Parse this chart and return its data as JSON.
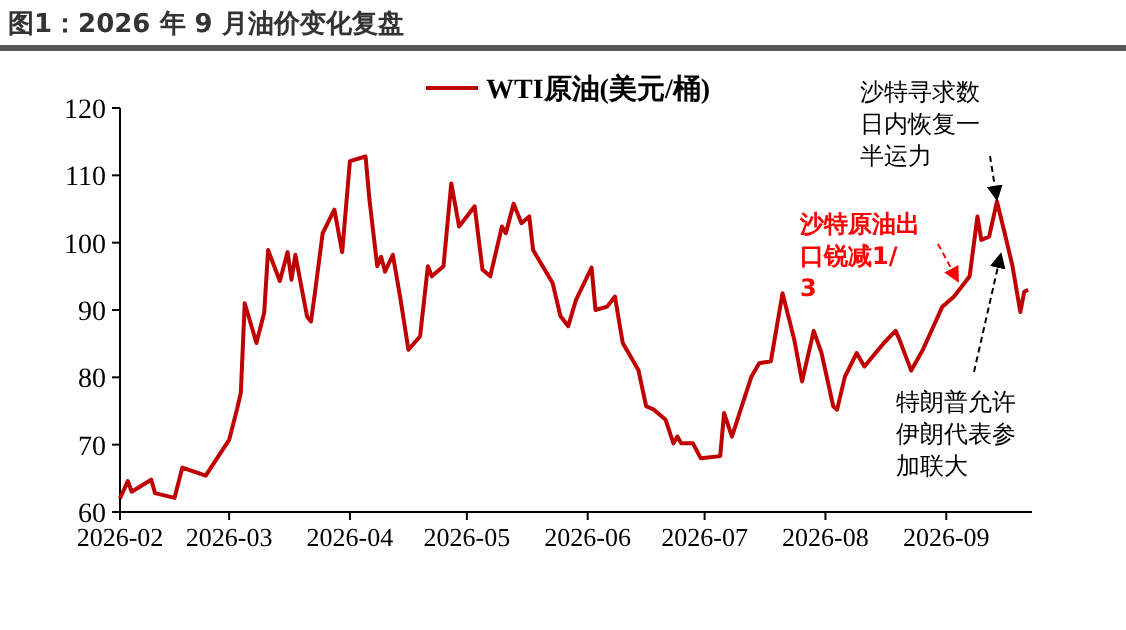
{
  "chart_data": {
    "type": "line",
    "title": "图1：2026 年 9 月油价变化复盘",
    "legend": "top",
    "x": [
      "2026-02-01",
      "2026-02-03",
      "2026-02-04",
      "2026-02-09",
      "2026-02-10",
      "2026-02-15",
      "2026-02-17",
      "2026-02-23",
      "2026-03-01",
      "2026-03-03",
      "2026-03-04",
      "2026-03-05",
      "2026-03-08",
      "2026-03-10",
      "2026-03-11",
      "2026-03-14",
      "2026-03-16",
      "2026-03-17",
      "2026-03-18",
      "2026-03-21",
      "2026-03-22",
      "2026-03-23",
      "2026-03-25",
      "2026-03-28",
      "2026-03-30",
      "2026-04-01",
      "2026-04-05",
      "2026-04-06",
      "2026-04-08",
      "2026-04-09",
      "2026-04-10",
      "2026-04-12",
      "2026-04-14",
      "2026-04-16",
      "2026-04-19",
      "2026-04-21",
      "2026-04-22",
      "2026-04-25",
      "2026-04-27",
      "2026-04-29",
      "2026-05-03",
      "2026-05-05",
      "2026-05-07",
      "2026-05-10",
      "2026-05-11",
      "2026-05-13",
      "2026-05-15",
      "2026-05-17",
      "2026-05-18",
      "2026-05-23",
      "2026-05-25",
      "2026-05-27",
      "2026-05-29",
      "2026-06-02",
      "2026-06-03",
      "2026-06-06",
      "2026-06-08",
      "2026-06-09",
      "2026-06-10",
      "2026-06-14",
      "2026-06-16",
      "2026-06-18",
      "2026-06-21",
      "2026-06-23",
      "2026-06-24",
      "2026-06-25",
      "2026-06-28",
      "2026-06-30",
      "2026-07-05",
      "2026-07-06",
      "2026-07-08",
      "2026-07-13",
      "2026-07-15",
      "2026-07-18",
      "2026-07-21",
      "2026-07-24",
      "2026-07-26",
      "2026-07-29",
      "2026-07-31",
      "2026-08-03",
      "2026-08-04",
      "2026-08-06",
      "2026-08-09",
      "2026-08-11",
      "2026-08-16",
      "2026-08-19",
      "2026-08-20",
      "2026-08-23",
      "2026-08-26",
      "2026-08-31",
      "2026-09-03",
      "2026-09-07",
      "2026-09-09",
      "2026-09-10",
      "2026-09-12",
      "2026-09-14",
      "2026-09-16",
      "2026-09-18",
      "2026-09-20",
      "2026-09-21",
      "2026-09-22"
    ],
    "series": [
      {
        "name": "WTI原油(美元/桶)",
        "color": "#c00000",
        "values": [
          62.0,
          64.6,
          63.0,
          64.8,
          62.8,
          62.1,
          66.6,
          65.4,
          70.7,
          75.2,
          77.7,
          91.0,
          85.1,
          89.6,
          98.9,
          94.3,
          98.6,
          94.5,
          98.2,
          89.0,
          88.3,
          92.5,
          101.4,
          104.9,
          98.6,
          112.1,
          112.8,
          106.4,
          96.5,
          97.9,
          95.7,
          98.2,
          91.5,
          84.1,
          86.1,
          96.5,
          95.0,
          96.5,
          108.8,
          102.4,
          105.4,
          96.0,
          95.0,
          102.4,
          101.4,
          105.8,
          102.9,
          103.9,
          98.9,
          94.0,
          89.1,
          87.6,
          91.5,
          96.3,
          90.0,
          90.5,
          92.0,
          88.5,
          85.1,
          81.1,
          75.7,
          75.2,
          73.7,
          70.2,
          71.2,
          70.2,
          70.2,
          68.0,
          68.3,
          74.7,
          71.2,
          80.1,
          82.1,
          82.4,
          92.5,
          85.6,
          79.4,
          86.9,
          83.6,
          75.7,
          75.2,
          80.1,
          83.6,
          81.6,
          85.1,
          86.9,
          85.6,
          81.0,
          84.1,
          90.5,
          92.0,
          95.0,
          103.9,
          100.4,
          100.9,
          106.1,
          101.4,
          96.5,
          89.7,
          92.7,
          93.0
        ]
      }
    ],
    "xlim": [
      "2026-02-01",
      "2026-09-23"
    ],
    "xticks": [
      {
        "value": "2026-02-01",
        "label": "2026-02"
      },
      {
        "value": "2026-03-01",
        "label": "2026-03"
      },
      {
        "value": "2026-04-01",
        "label": "2026-04"
      },
      {
        "value": "2026-05-01",
        "label": "2026-05"
      },
      {
        "value": "2026-06-01",
        "label": "2026-06"
      },
      {
        "value": "2026-07-01",
        "label": "2026-07"
      },
      {
        "value": "2026-08-01",
        "label": "2026-08"
      },
      {
        "value": "2026-09-01",
        "label": "2026-09"
      }
    ],
    "ylim": [
      60,
      120
    ],
    "yticks": [
      60,
      70,
      80,
      90,
      100,
      110,
      120
    ],
    "annotations": [
      {
        "text": "沙特寻求数日内恢复一半运力",
        "x": "2026-09-14",
        "y": 106.1
      },
      {
        "text": "沙特原油出口锐减1/3",
        "x": "2026-09-04",
        "y": 94
      },
      {
        "text": "特朗普允许伊朗代表参加联大",
        "x": "2026-09-15",
        "y": 98
      }
    ]
  }
}
